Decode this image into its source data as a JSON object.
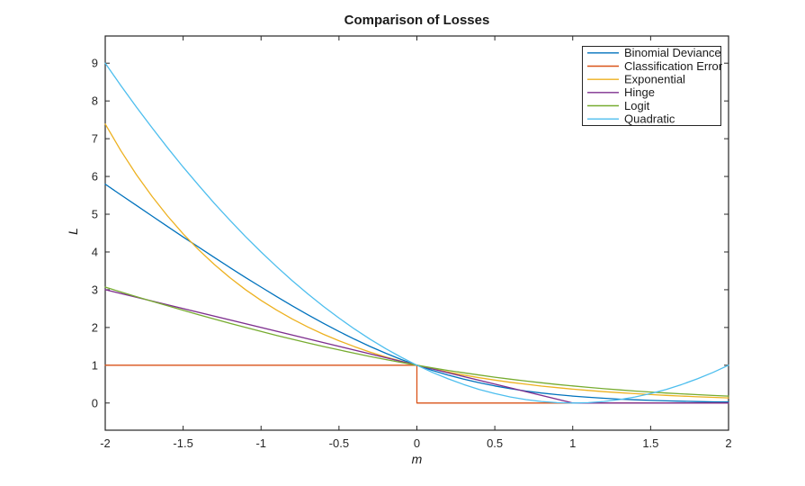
{
  "figure": {
    "background": "#ffffff"
  },
  "chart_data": {
    "type": "line",
    "title": "Comparison of Losses",
    "xlabel": "m",
    "ylabel": "L",
    "xlim": [
      -2,
      2
    ],
    "ylim": [
      -0.72,
      9.72
    ],
    "xticks": [
      -2,
      -1.5,
      -1,
      -0.5,
      0,
      0.5,
      1,
      1.5,
      2
    ],
    "xtick_labels": [
      "-2",
      "-1.5",
      "-1",
      "-0.5",
      "0",
      "0.5",
      "1",
      "1.5",
      "2"
    ],
    "yticks": [
      0,
      1,
      2,
      3,
      4,
      5,
      6,
      7,
      8,
      9
    ],
    "ytick_labels": [
      "0",
      "1",
      "2",
      "3",
      "4",
      "5",
      "6",
      "7",
      "8",
      "9"
    ],
    "grid": false,
    "axis_color": "#262626",
    "legend": {
      "position": "top-right",
      "background": "#ffffff",
      "border_color": "#262626"
    },
    "x": [
      -2,
      -1.9,
      -1.8,
      -1.7,
      -1.6,
      -1.5,
      -1.4,
      -1.3,
      -1.2,
      -1.1,
      -1,
      -0.9,
      -0.8,
      -0.7,
      -0.6,
      -0.5,
      -0.4,
      -0.3,
      -0.2,
      -0.1,
      0,
      0.1,
      0.2,
      0.3,
      0.4,
      0.5,
      0.6,
      0.7,
      0.8,
      0.9,
      1,
      1.1,
      1.2,
      1.3,
      1.4,
      1.5,
      1.6,
      1.7,
      1.8,
      1.9,
      2
    ],
    "series": [
      {
        "name": "Binomial Deviance",
        "color": "#0072BD",
        "y": [
          5.797,
          5.514,
          5.233,
          4.953,
          4.675,
          4.398,
          4.125,
          3.854,
          3.588,
          3.326,
          3.069,
          2.818,
          2.574,
          2.338,
          2.111,
          1.895,
          1.69,
          1.497,
          1.317,
          1.152,
          1.0,
          0.863,
          0.74,
          0.631,
          0.536,
          0.452,
          0.38,
          0.318,
          0.265,
          0.221,
          0.183,
          0.152,
          0.125,
          0.103,
          0.085,
          0.07,
          0.058,
          0.047,
          0.039,
          0.032,
          0.026
        ]
      },
      {
        "name": "Classification Error",
        "color": "#D95319",
        "px": [
          -2,
          0,
          0,
          2
        ],
        "py": [
          1,
          1,
          0,
          0
        ]
      },
      {
        "name": "Exponential",
        "color": "#EDB120",
        "y": [
          7.389,
          6.686,
          6.05,
          5.474,
          4.953,
          4.482,
          4.055,
          3.669,
          3.32,
          3.004,
          2.718,
          2.46,
          2.226,
          2.014,
          1.822,
          1.649,
          1.492,
          1.35,
          1.221,
          1.105,
          1.0,
          0.905,
          0.819,
          0.741,
          0.67,
          0.607,
          0.549,
          0.497,
          0.449,
          0.407,
          0.368,
          0.333,
          0.301,
          0.273,
          0.247,
          0.223,
          0.202,
          0.183,
          0.165,
          0.15,
          0.135
        ]
      },
      {
        "name": "Hinge",
        "color": "#7E2F8E",
        "px": [
          -2,
          1,
          2
        ],
        "py": [
          3,
          0,
          0
        ]
      },
      {
        "name": "Logit",
        "color": "#77AC30",
        "y": [
          3.069,
          2.942,
          2.818,
          2.695,
          2.574,
          2.455,
          2.338,
          2.223,
          2.111,
          2.002,
          1.895,
          1.791,
          1.69,
          1.592,
          1.497,
          1.406,
          1.317,
          1.233,
          1.152,
          1.074,
          1.0,
          0.93,
          0.863,
          0.8,
          0.74,
          0.684,
          0.631,
          0.582,
          0.536,
          0.492,
          0.452,
          0.415,
          0.38,
          0.348,
          0.318,
          0.291,
          0.265,
          0.242,
          0.221,
          0.201,
          0.183
        ]
      },
      {
        "name": "Quadratic",
        "color": "#4DBEEE",
        "y": [
          9.0,
          8.41,
          7.84,
          7.29,
          6.76,
          6.25,
          5.76,
          5.29,
          4.84,
          4.41,
          4.0,
          3.61,
          3.24,
          2.89,
          2.56,
          2.25,
          1.96,
          1.69,
          1.44,
          1.21,
          1.0,
          0.81,
          0.64,
          0.49,
          0.36,
          0.25,
          0.16,
          0.09,
          0.04,
          0.01,
          0.0,
          0.01,
          0.04,
          0.09,
          0.16,
          0.25,
          0.36,
          0.49,
          0.64,
          0.81,
          1.0
        ]
      }
    ]
  }
}
